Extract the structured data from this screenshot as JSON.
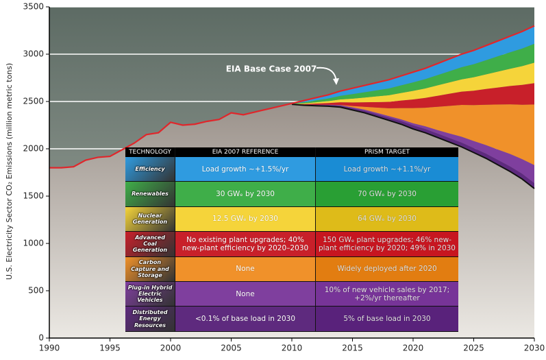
{
  "chart_data": {
    "type": "area",
    "y_label": "U.S. Electricity Sector CO₂ Emissions (million metric tons)",
    "annotation": "EIA Base Case 2007",
    "x": [
      1990,
      1991,
      1992,
      1993,
      1994,
      1995,
      1996,
      1997,
      1998,
      1999,
      2000,
      2001,
      2002,
      2003,
      2004,
      2005,
      2006,
      2007,
      2008,
      2009,
      2010,
      2011,
      2012,
      2013,
      2014,
      2015,
      2016,
      2017,
      2018,
      2019,
      2020,
      2021,
      2022,
      2023,
      2024,
      2025,
      2026,
      2027,
      2028,
      2029,
      2030
    ],
    "xlim": [
      1990,
      2030
    ],
    "xticks": [
      1990,
      1995,
      2000,
      2005,
      2010,
      2015,
      2020,
      2025,
      2030
    ],
    "ylim": [
      0,
      3500
    ],
    "yticks": [
      0,
      500,
      1000,
      1500,
      2000,
      2500,
      3000,
      3500
    ],
    "grid": true,
    "base_line": {
      "color": "#e0262b",
      "values": [
        1800,
        1800,
        1810,
        1880,
        1910,
        1920,
        1990,
        2060,
        2150,
        2170,
        2280,
        2250,
        2260,
        2290,
        2310,
        2380,
        2360,
        2390,
        2420,
        2450,
        2480,
        2510,
        2540,
        2570,
        2610,
        2640,
        2670,
        2700,
        2730,
        2770,
        2810,
        2850,
        2900,
        2950,
        3000,
        3040,
        3090,
        3140,
        3190,
        3240,
        3300
      ]
    },
    "target_line": {
      "color": "#111111",
      "values": [
        null,
        null,
        null,
        null,
        null,
        null,
        null,
        null,
        null,
        null,
        null,
        null,
        null,
        null,
        null,
        null,
        null,
        null,
        null,
        null,
        2470,
        2460,
        2455,
        2450,
        2440,
        2410,
        2380,
        2340,
        2300,
        2260,
        2210,
        2170,
        2120,
        2070,
        2020,
        1960,
        1900,
        1830,
        1760,
        1680,
        1580
      ]
    },
    "wedges": [
      {
        "color": "#2f9be0",
        "values": [
          null,
          null,
          null,
          null,
          null,
          null,
          null,
          null,
          null,
          null,
          null,
          null,
          null,
          null,
          null,
          null,
          null,
          null,
          null,
          null,
          4,
          18,
          28,
          38,
          50,
          62,
          72,
          82,
          92,
          100,
          108,
          114,
          122,
          130,
          138,
          146,
          154,
          162,
          170,
          180,
          190
        ]
      },
      {
        "color": "#3fae49",
        "values": [
          null,
          null,
          null,
          null,
          null,
          null,
          null,
          null,
          null,
          null,
          null,
          null,
          null,
          null,
          null,
          null,
          null,
          null,
          null,
          null,
          3,
          12,
          20,
          28,
          38,
          48,
          56,
          64,
          72,
          80,
          90,
          98,
          108,
          118,
          128,
          138,
          150,
          162,
          174,
          186,
          200
        ]
      },
      {
        "color": "#f5d43a",
        "values": [
          null,
          null,
          null,
          null,
          null,
          null,
          null,
          null,
          null,
          null,
          null,
          null,
          null,
          null,
          null,
          null,
          null,
          null,
          null,
          null,
          1,
          8,
          14,
          20,
          30,
          40,
          50,
          60,
          70,
          80,
          90,
          100,
          110,
          120,
          130,
          142,
          154,
          168,
          182,
          198,
          216
        ]
      },
      {
        "color": "#c8202a",
        "values": [
          null,
          null,
          null,
          null,
          null,
          null,
          null,
          null,
          null,
          null,
          null,
          null,
          null,
          null,
          null,
          null,
          null,
          null,
          null,
          null,
          1,
          6,
          12,
          18,
          28,
          38,
          48,
          58,
          68,
          80,
          92,
          104,
          116,
          128,
          140,
          152,
          166,
          180,
          194,
          210,
          226
        ]
      },
      {
        "color": "#f0912a",
        "values": [
          null,
          null,
          null,
          null,
          null,
          null,
          null,
          null,
          null,
          null,
          null,
          null,
          null,
          null,
          null,
          null,
          null,
          null,
          null,
          null,
          0,
          0,
          0,
          0,
          2,
          14,
          30,
          56,
          82,
          118,
          160,
          196,
          246,
          292,
          336,
          380,
          426,
          476,
          524,
          576,
          640
        ]
      },
      {
        "color": "#7f3f9e",
        "values": [
          null,
          null,
          null,
          null,
          null,
          null,
          null,
          null,
          null,
          null,
          null,
          null,
          null,
          null,
          null,
          null,
          null,
          null,
          null,
          null,
          0,
          2,
          4,
          6,
          8,
          10,
          12,
          14,
          16,
          18,
          22,
          28,
          36,
          48,
          62,
          74,
          90,
          110,
          132,
          154,
          190
        ]
      },
      {
        "color": "#5e2a7e",
        "values": [
          null,
          null,
          null,
          null,
          null,
          null,
          null,
          null,
          null,
          null,
          null,
          null,
          null,
          null,
          null,
          null,
          null,
          null,
          null,
          null,
          1,
          4,
          7,
          10,
          14,
          18,
          22,
          26,
          30,
          34,
          38,
          40,
          42,
          44,
          46,
          48,
          50,
          52,
          54,
          56,
          58
        ]
      }
    ]
  },
  "table": {
    "headers": [
      "TECHNOLOGY",
      "EIA 2007 REFERENCE",
      "PRISM TARGET"
    ],
    "rows": [
      [
        "Efficiency",
        "Load growth ~+1.5%/yr",
        "Load growth ~+1.1%/yr"
      ],
      [
        "Renewables",
        "30 GWₑ by 2030",
        "70 GWₑ by 2030"
      ],
      [
        "Nuclear Generation",
        "12.5 GWₑ by 2030",
        "64 GWₑ by 2030"
      ],
      [
        "Advanced Coal Generation",
        "No existing plant upgrades; 40% new-plant efficiency by 2020–2030",
        "150 GWₑ plant upgrades; 46% new-plant efficiency by 2020; 49% in 2030"
      ],
      [
        "Carbon Capture and Storage",
        "None",
        "Widely deployed after 2020"
      ],
      [
        "Plug-in Hybrid Electric Vehicles",
        "None",
        "10% of new vehicle sales by 2017; +2%/yr thereafter"
      ],
      [
        "Distributed Energy Resources",
        "<0.1% of base load in 2030",
        "5% of base load in 2030"
      ]
    ]
  }
}
